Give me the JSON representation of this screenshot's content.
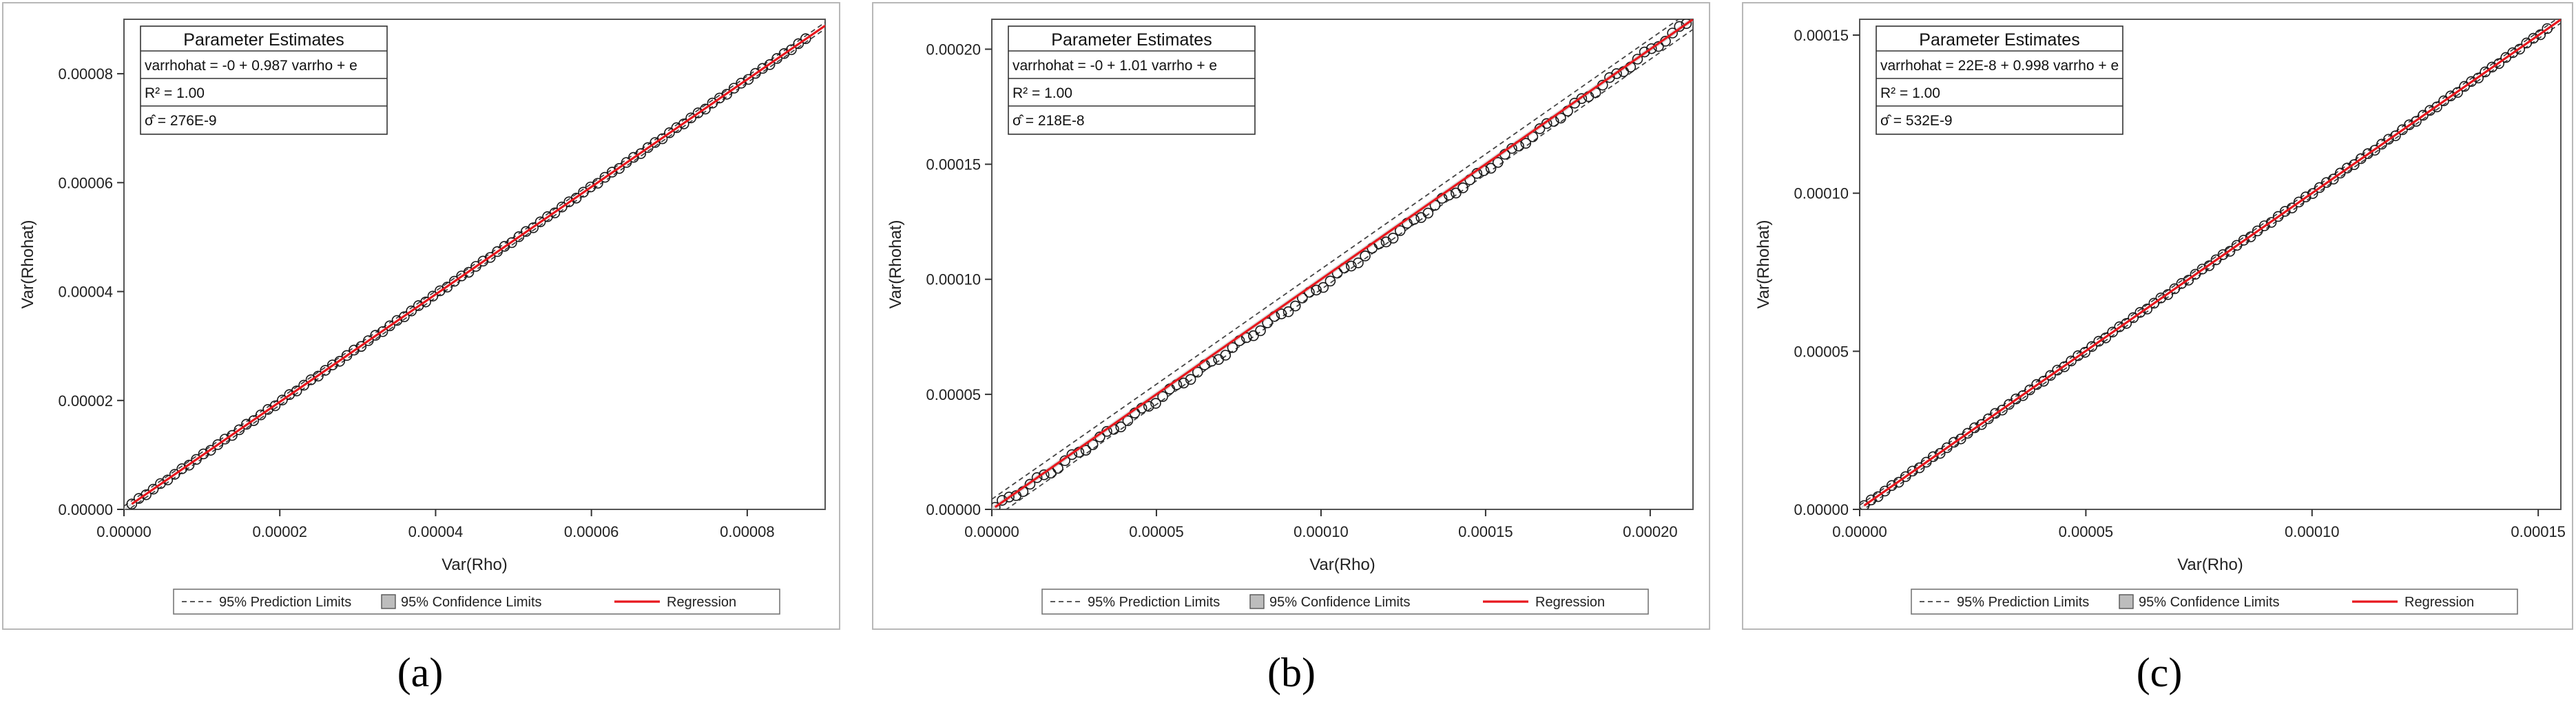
{
  "legend": {
    "prediction_label": "95% Prediction Limits",
    "confidence_label": "95% Confidence Limits",
    "regression_label": "Regression",
    "colors": {
      "regression": "#e8181e",
      "prediction": "#444444",
      "confidence": "#bdbdbd"
    }
  },
  "chart_data": [
    {
      "type": "scatter",
      "caption": "(a)",
      "xlabel": "Var(Rho)",
      "ylabel": "Var(Rhohat)",
      "xlim": [
        0,
        9e-05
      ],
      "ylim": [
        0,
        9e-05
      ],
      "xticks": [
        "0.00000",
        "0.00002",
        "0.00004",
        "0.00006",
        "0.00008"
      ],
      "xtick_values": [
        0,
        2e-05,
        4e-05,
        6e-05,
        8e-05
      ],
      "yticks": [
        "0.00000",
        "0.00002",
        "0.00004",
        "0.00006",
        "0.00008"
      ],
      "ytick_values": [
        0,
        2e-05,
        4e-05,
        6e-05,
        8e-05
      ],
      "parameter_estimates": {
        "title": "Parameter Estimates",
        "equation": "varrhohat = -0 + 0.987 varrho + e",
        "r_squared": "R² = 1.00",
        "sigma_hat": "σ̂ = 276E-9"
      },
      "intercept": 0,
      "slope": 0.987,
      "prediction_halfwidth": 6e-07,
      "confidence_halfwidth": 2e-07,
      "x_range": [
        1e-06,
        8.75e-05
      ],
      "n_points": 95,
      "point_deviation": 2e-07
    },
    {
      "type": "scatter",
      "caption": "(b)",
      "xlabel": "Var(Rho)",
      "ylabel": "Var(Rhohat)",
      "xlim": [
        0,
        0.000213
      ],
      "ylim": [
        0,
        0.000213
      ],
      "xticks": [
        "0.00000",
        "0.00005",
        "0.00010",
        "0.00015",
        "0.00020"
      ],
      "xtick_values": [
        0,
        5e-05,
        0.0001,
        0.00015,
        0.0002
      ],
      "yticks": [
        "0.00000",
        "0.00005",
        "0.00010",
        "0.00015",
        "0.00020"
      ],
      "ytick_values": [
        0,
        5e-05,
        0.0001,
        0.00015,
        0.0002
      ],
      "parameter_estimates": {
        "title": "Parameter Estimates",
        "equation": "varrhohat = -0 + 1.01 varrho + e",
        "r_squared": "R² = 1.00",
        "sigma_hat": "σ̂ = 218E-8"
      },
      "intercept": 0,
      "slope": 1.0,
      "prediction_halfwidth": 4.4e-06,
      "confidence_halfwidth": 1.2e-06,
      "x_range": [
        1e-06,
        0.000211
      ],
      "n_points": 100,
      "point_deviation": 2.8e-06
    },
    {
      "type": "scatter",
      "caption": "(c)",
      "xlabel": "Var(Rho)",
      "ylabel": "Var(Rhohat)",
      "xlim": [
        0,
        0.000155
      ],
      "ylim": [
        0,
        0.000155
      ],
      "xticks": [
        "0.00000",
        "0.00005",
        "0.00010",
        "0.00015"
      ],
      "xtick_values": [
        0,
        5e-05,
        0.0001,
        0.00015
      ],
      "yticks": [
        "0.00000",
        "0.00005",
        "0.00010",
        "0.00015"
      ],
      "ytick_values": [
        0,
        5e-05,
        0.0001,
        0.00015
      ],
      "parameter_estimates": {
        "title": "Parameter Estimates",
        "equation": "varrhohat = 22E-8 + 0.998 varrho + e",
        "r_squared": "R² = 1.00",
        "sigma_hat": "σ̂ = 532E-9"
      },
      "intercept": 2.2e-07,
      "slope": 0.998,
      "prediction_halfwidth": 1.1e-06,
      "confidence_halfwidth": 4e-07,
      "x_range": [
        1e-06,
        0.000152
      ],
      "n_points": 100,
      "point_deviation": 4e-07
    }
  ]
}
